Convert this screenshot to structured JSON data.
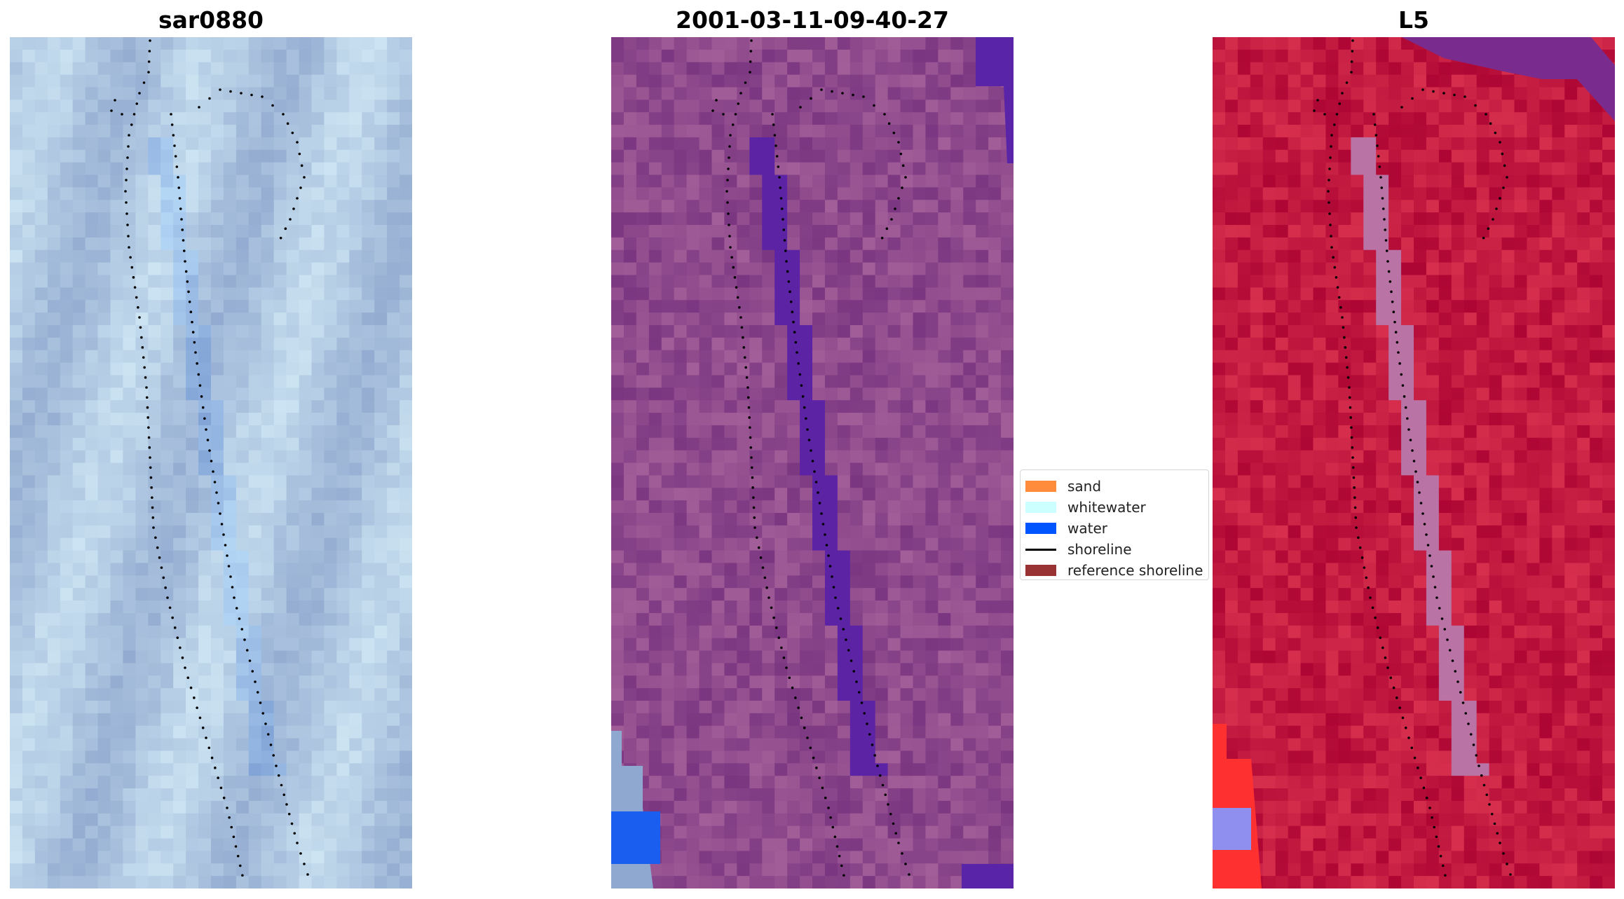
{
  "panels": [
    {
      "title": "sar0880",
      "style": "rgb",
      "base": "#93abd0"
    },
    {
      "title": "2001-03-11-09-40-27",
      "style": "classified",
      "base": "#8e4a8c"
    },
    {
      "title": "L5",
      "style": "index",
      "base": "#c21a40"
    }
  ],
  "legend": {
    "items": [
      {
        "label": "sand",
        "color": "#ff8c3a",
        "kind": "patch"
      },
      {
        "label": "whitewater",
        "color": "#ccffff",
        "kind": "patch"
      },
      {
        "label": "water",
        "color": "#0055ff",
        "kind": "patch"
      },
      {
        "label": "shoreline",
        "color": "#000000",
        "kind": "line"
      },
      {
        "label": "reference shoreline",
        "color": "#993333",
        "kind": "patch"
      }
    ]
  }
}
